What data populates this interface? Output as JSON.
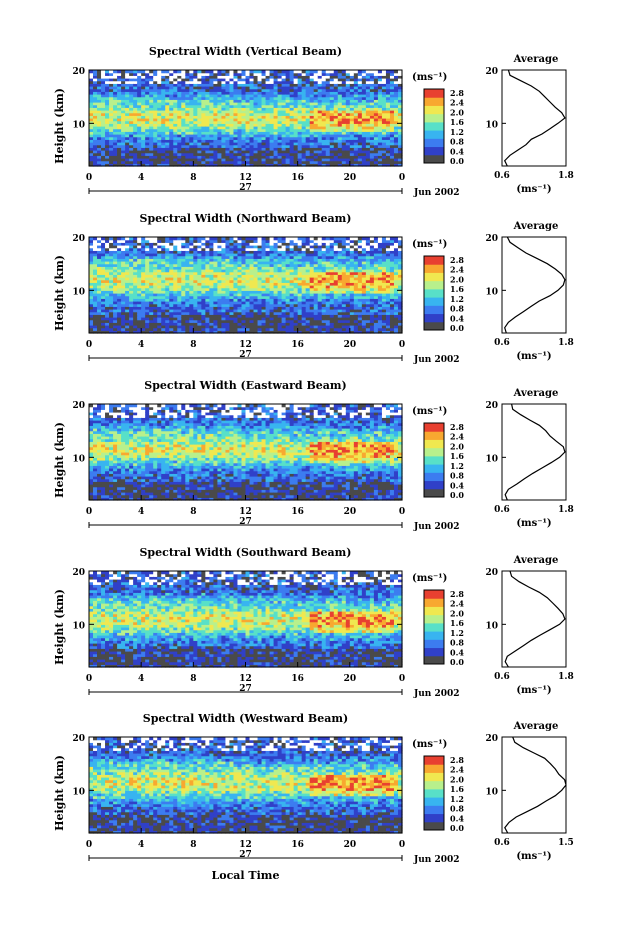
{
  "figure": {
    "xlabel": "Local Time",
    "date_label": "Jun 2002",
    "day_label": "27"
  },
  "colorbar": {
    "unit_label": "(ms⁻¹)",
    "ticks": [
      "0.0",
      "0.4",
      "0.8",
      "1.2",
      "1.6",
      "2.0",
      "2.4",
      "2.8"
    ],
    "colors": [
      "#4a4a4a",
      "#3040c8",
      "#3c7cf0",
      "#38b4f0",
      "#58e0c8",
      "#b8f08c",
      "#f0e850",
      "#f8a830",
      "#e84030"
    ]
  },
  "chart_data": [
    {
      "type": "heatmap",
      "title": "Spectral Width (Vertical Beam)",
      "ylabel": "Height (km)",
      "xlim": [
        0,
        24
      ],
      "ylim": [
        2,
        20
      ],
      "xticks": [
        "0",
        "4",
        "8",
        "12",
        "16",
        "20",
        "0"
      ],
      "yticks": [
        "10",
        "20"
      ],
      "clim": [
        0.0,
        2.8
      ],
      "peak_height_km": 11,
      "profile": {
        "title": "Average",
        "xlabel": "(ms⁻¹)",
        "xticks": [
          "0.6",
          "1.8"
        ],
        "yticks": [
          "10",
          "20"
        ],
        "xlim": [
          0.6,
          1.8
        ],
        "ylim": [
          2,
          20
        ],
        "height_km": [
          2,
          3,
          4,
          5,
          6,
          7,
          8,
          9,
          10,
          11,
          12,
          13,
          14,
          15,
          16,
          17,
          18,
          19,
          20
        ],
        "width_ms": [
          0.7,
          0.65,
          0.75,
          0.9,
          1.05,
          1.15,
          1.35,
          1.5,
          1.65,
          1.78,
          1.72,
          1.6,
          1.5,
          1.4,
          1.3,
          1.15,
          0.95,
          0.75,
          0.72
        ]
      }
    },
    {
      "type": "heatmap",
      "title": "Spectral Width (Northward Beam)",
      "ylabel": "Height (km)",
      "xlim": [
        0,
        24
      ],
      "ylim": [
        2,
        20
      ],
      "xticks": [
        "0",
        "4",
        "8",
        "12",
        "16",
        "20",
        "0"
      ],
      "yticks": [
        "10",
        "20"
      ],
      "clim": [
        0.0,
        2.8
      ],
      "peak_height_km": 12,
      "profile": {
        "title": "Average",
        "xlabel": "(ms⁻¹)",
        "xticks": [
          "0.6",
          "1.8"
        ],
        "yticks": [
          "10",
          "20"
        ],
        "xlim": [
          0.6,
          1.8
        ],
        "ylim": [
          2,
          20
        ],
        "height_km": [
          2,
          3,
          4,
          5,
          6,
          7,
          8,
          9,
          10,
          11,
          12,
          13,
          14,
          15,
          16,
          17,
          18,
          19,
          20
        ],
        "width_ms": [
          0.68,
          0.65,
          0.72,
          0.85,
          1.0,
          1.15,
          1.3,
          1.5,
          1.65,
          1.75,
          1.78,
          1.72,
          1.6,
          1.45,
          1.25,
          1.05,
          0.9,
          0.75,
          0.7
        ]
      }
    },
    {
      "type": "heatmap",
      "title": "Spectral Width (Eastward Beam)",
      "ylabel": "Height (km)",
      "xlim": [
        0,
        24
      ],
      "ylim": [
        2,
        20
      ],
      "xticks": [
        "0",
        "4",
        "8",
        "12",
        "16",
        "20",
        "0"
      ],
      "yticks": [
        "10",
        "20"
      ],
      "clim": [
        0.0,
        2.8
      ],
      "peak_height_km": 11.5,
      "profile": {
        "title": "Average",
        "xlabel": "(ms⁻¹)",
        "xticks": [
          "0.6",
          "1.8"
        ],
        "yticks": [
          "10",
          "20"
        ],
        "xlim": [
          0.6,
          1.8
        ],
        "ylim": [
          2,
          20
        ],
        "height_km": [
          2,
          3,
          4,
          5,
          6,
          7,
          8,
          9,
          10,
          11,
          12,
          13,
          14,
          15,
          16,
          17,
          18,
          19,
          20
        ],
        "width_ms": [
          0.7,
          0.66,
          0.72,
          0.88,
          1.02,
          1.18,
          1.35,
          1.52,
          1.68,
          1.78,
          1.75,
          1.62,
          1.5,
          1.42,
          1.3,
          1.12,
          0.95,
          0.8,
          0.78
        ]
      }
    },
    {
      "type": "heatmap",
      "title": "Spectral Width (Southward Beam)",
      "ylabel": "Height (km)",
      "xlim": [
        0,
        24
      ],
      "ylim": [
        2,
        20
      ],
      "xticks": [
        "0",
        "4",
        "8",
        "12",
        "16",
        "20",
        "0"
      ],
      "yticks": [
        "10",
        "20"
      ],
      "clim": [
        0.0,
        2.8
      ],
      "peak_height_km": 11,
      "profile": {
        "title": "Average",
        "xlabel": "(ms⁻¹)",
        "xticks": [
          "0.6",
          "1.8"
        ],
        "yticks": [
          "10",
          "20"
        ],
        "xlim": [
          0.6,
          1.8
        ],
        "ylim": [
          2,
          20
        ],
        "height_km": [
          2,
          3,
          4,
          5,
          6,
          7,
          8,
          9,
          10,
          11,
          12,
          13,
          14,
          15,
          16,
          17,
          18,
          19,
          20
        ],
        "width_ms": [
          0.72,
          0.66,
          0.7,
          0.85,
          1.0,
          1.15,
          1.32,
          1.5,
          1.68,
          1.78,
          1.74,
          1.65,
          1.55,
          1.45,
          1.3,
          1.1,
          0.92,
          0.78,
          0.75
        ]
      }
    },
    {
      "type": "heatmap",
      "title": "Spectral Width (Westward Beam)",
      "ylabel": "Height (km)",
      "xlim": [
        0,
        24
      ],
      "ylim": [
        2,
        20
      ],
      "xticks": [
        "0",
        "4",
        "8",
        "12",
        "16",
        "20",
        "0"
      ],
      "yticks": [
        "10",
        "20"
      ],
      "clim": [
        0.0,
        2.8
      ],
      "peak_height_km": 11.5,
      "profile": {
        "title": "Average",
        "xlabel": "(ms⁻¹)",
        "xticks": [
          "0.6",
          "1.5"
        ],
        "yticks": [
          "10",
          "20"
        ],
        "xlim": [
          0.6,
          1.5
        ],
        "ylim": [
          2,
          20
        ],
        "height_km": [
          2,
          3,
          4,
          5,
          6,
          7,
          8,
          9,
          10,
          11,
          12,
          13,
          14,
          15,
          16,
          17,
          18,
          19,
          20
        ],
        "width_ms": [
          0.68,
          0.64,
          0.7,
          0.8,
          0.95,
          1.1,
          1.22,
          1.35,
          1.44,
          1.5,
          1.48,
          1.4,
          1.35,
          1.28,
          1.2,
          1.05,
          0.9,
          0.78,
          0.75
        ]
      }
    }
  ]
}
